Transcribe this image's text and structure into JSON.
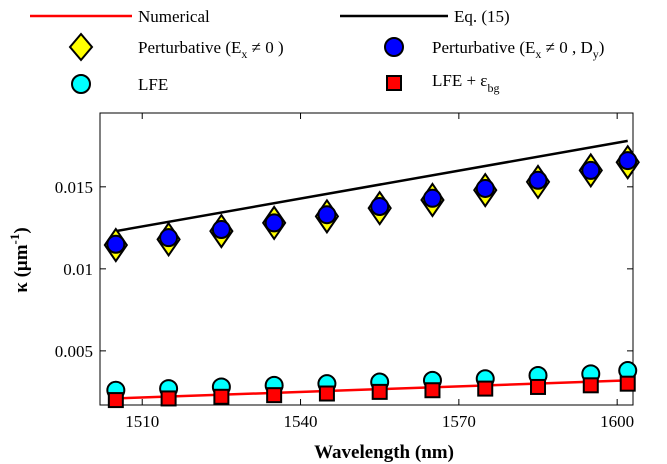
{
  "chart_data": {
    "type": "scatter",
    "xlabel": "Wavelength (nm)",
    "ylabel_main": "κ (μm",
    "ylabel_exp": "-1",
    "ylabel_tail": ")",
    "xlim": [
      1502,
      1603
    ],
    "ylim": [
      0.0017,
      0.0195
    ],
    "xticks": [
      1510,
      1540,
      1570,
      1600
    ],
    "xtick_labels": [
      "1510",
      "1540",
      "1570",
      "1600"
    ],
    "yticks": [
      0.005,
      0.01,
      0.015
    ],
    "ytick_labels": [
      "0.005",
      "0.01",
      "0.015"
    ],
    "grid": false,
    "legend_placement": "top",
    "x": [
      1505,
      1515,
      1525,
      1535,
      1545,
      1555,
      1565,
      1575,
      1585,
      1595,
      1602
    ],
    "series": [
      {
        "key": "numerical",
        "name": "Numerical",
        "kind": "line",
        "color": "#ff0000",
        "x": [
          1505,
          1602
        ],
        "y": [
          0.0021,
          0.0032
        ]
      },
      {
        "key": "eq15",
        "name": "Eq. (15)",
        "kind": "line",
        "color": "#000000",
        "x": [
          1505,
          1602
        ],
        "y": [
          0.0123,
          0.0178
        ]
      },
      {
        "key": "pert",
        "name_main": "Perturbative (E",
        "name_sub": "x",
        "name_tail": " ≠ 0 )",
        "kind": "marker",
        "marker": "diamond",
        "color": "#ffff00",
        "values": [
          0.01145,
          0.0118,
          0.0123,
          0.0128,
          0.0132,
          0.0137,
          0.0142,
          0.0148,
          0.0153,
          0.016,
          0.0165
        ]
      },
      {
        "key": "pertdy",
        "name_main": "Perturbative (E",
        "name_sub": "x",
        "name_tail": " ≠ 0 , D",
        "name_sub2": "y",
        "name_tail2": ")",
        "kind": "marker",
        "marker": "circle",
        "color": "#0000ff",
        "values": [
          0.0115,
          0.0119,
          0.0124,
          0.0128,
          0.0133,
          0.0138,
          0.0143,
          0.0149,
          0.0154,
          0.016,
          0.0166
        ]
      },
      {
        "key": "lfe",
        "name": "LFE",
        "kind": "marker",
        "marker": "circle",
        "color": "#00ffff",
        "values": [
          0.0026,
          0.0027,
          0.0028,
          0.0029,
          0.003,
          0.0031,
          0.0032,
          0.0033,
          0.0035,
          0.0036,
          0.0038
        ]
      },
      {
        "key": "lfebg",
        "name_main": "LFE + ε",
        "name_sub": "bg",
        "kind": "marker",
        "marker": "square",
        "color": "#ff0000",
        "values": [
          0.002,
          0.0021,
          0.0022,
          0.0023,
          0.0024,
          0.0025,
          0.0026,
          0.0027,
          0.0028,
          0.0029,
          0.003
        ]
      }
    ]
  }
}
